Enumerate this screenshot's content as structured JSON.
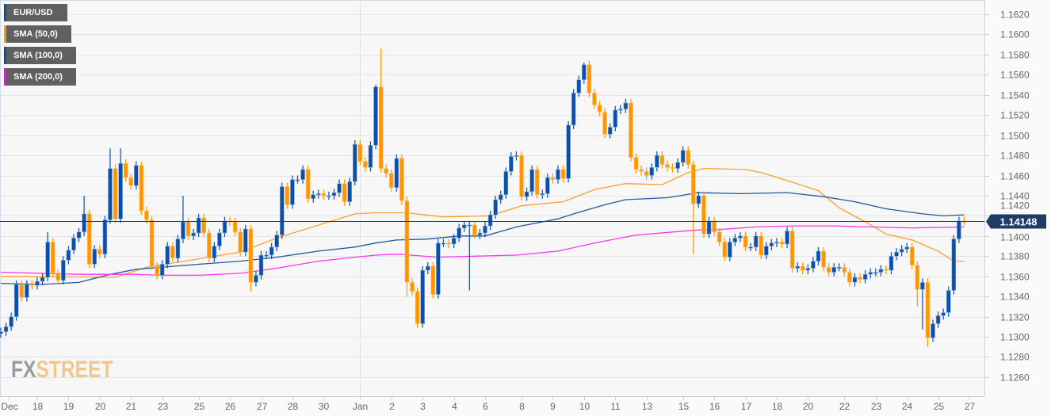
{
  "legend": [
    {
      "label": "EUR/USD",
      "color": "#0b4fa8"
    },
    {
      "label": "SMA (50,0)",
      "color": "#ff9500"
    },
    {
      "label": "SMA (100,0)",
      "color": "#0b4fa8"
    },
    {
      "label": "SMA (200,0)",
      "color": "#ff00ff"
    }
  ],
  "logo": {
    "fx": "FX",
    "street": "STREET"
  },
  "colors": {
    "up": "#0b4fa8",
    "down": "#ff9500",
    "sma50": "#ff9f2e",
    "sma100": "#2357a0",
    "sma200": "#ff33ee",
    "price_line": "#1e3d66",
    "grid": "#e4e4e4"
  },
  "chart_data": {
    "type": "candlestick",
    "title": "EUR/USD",
    "ylim": [
      1.1245,
      1.1635
    ],
    "y_ticks": [
      "1.1260",
      "1.1280",
      "1.1300",
      "1.1320",
      "1.1340",
      "1.1360",
      "1.1380",
      "1.1400",
      "1.1420",
      "1.1440",
      "1.1460",
      "1.1480",
      "1.1500",
      "1.1520",
      "1.1540",
      "1.1560",
      "1.1580",
      "1.1600",
      "1.1620"
    ],
    "x_ticks": [
      {
        "label": "Dec",
        "index": 1.5
      },
      {
        "label": "18",
        "index": 7
      },
      {
        "label": "19",
        "index": 13
      },
      {
        "label": "20",
        "index": 19
      },
      {
        "label": "21",
        "index": 25
      },
      {
        "label": "23",
        "index": 31
      },
      {
        "label": "25",
        "index": 38
      },
      {
        "label": "26",
        "index": 44
      },
      {
        "label": "27",
        "index": 50
      },
      {
        "label": "28",
        "index": 56
      },
      {
        "label": "30",
        "index": 62
      },
      {
        "label": "Jan",
        "index": 69,
        "gridline": true
      },
      {
        "label": "2",
        "index": 75
      },
      {
        "label": "3",
        "index": 81
      },
      {
        "label": "4",
        "index": 87
      },
      {
        "label": "6",
        "index": 93
      },
      {
        "label": "8",
        "index": 100
      },
      {
        "label": "9",
        "index": 106
      },
      {
        "label": "10",
        "index": 112
      },
      {
        "label": "11",
        "index": 118
      },
      {
        "label": "13",
        "index": 124
      },
      {
        "label": "15",
        "index": 131
      },
      {
        "label": "16",
        "index": 137
      },
      {
        "label": "17",
        "index": 143
      },
      {
        "label": "18",
        "index": 149
      },
      {
        "label": "20",
        "index": 155
      },
      {
        "label": "22",
        "index": 162
      },
      {
        "label": "23",
        "index": 168
      },
      {
        "label": "24",
        "index": 174
      },
      {
        "label": "25",
        "index": 180
      },
      {
        "label": "27",
        "index": 186
      }
    ],
    "first_open": 1.1303,
    "closes": [
      1.1305,
      1.131,
      1.132,
      1.1352,
      1.1339,
      1.1352,
      1.1351,
      1.1355,
      1.1359,
      1.1394,
      1.1363,
      1.1356,
      1.1376,
      1.1386,
      1.1398,
      1.1404,
      1.1422,
      1.1372,
      1.1387,
      1.1382,
      1.1416,
      1.1467,
      1.1417,
      1.1472,
      1.1458,
      1.145,
      1.147,
      1.1425,
      1.1416,
      1.137,
      1.1361,
      1.1372,
      1.139,
      1.1378,
      1.1397,
      1.1414,
      1.14,
      1.1403,
      1.1418,
      1.1403,
      1.1378,
      1.139,
      1.1403,
      1.1415,
      1.1414,
      1.1404,
      1.1384,
      1.1407,
      1.1354,
      1.1361,
      1.1381,
      1.1381,
      1.1389,
      1.1401,
      1.1449,
      1.1431,
      1.1456,
      1.1456,
      1.1466,
      1.1437,
      1.1441,
      1.1442,
      1.144,
      1.144,
      1.1443,
      1.1452,
      1.1434,
      1.1454,
      1.1491,
      1.1474,
      1.1468,
      1.149,
      1.1548,
      1.1467,
      1.1462,
      1.1448,
      1.1477,
      1.1435,
      1.1354,
      1.1345,
      1.1313,
      1.1366,
      1.137,
      1.1342,
      1.1393,
      1.1393,
      1.1392,
      1.1398,
      1.1408,
      1.1411,
      1.1411,
      1.1401,
      1.1403,
      1.141,
      1.1421,
      1.1436,
      1.1441,
      1.1464,
      1.1479,
      1.148,
      1.1439,
      1.1444,
      1.1466,
      1.1441,
      1.1442,
      1.1458,
      1.1456,
      1.1466,
      1.1457,
      1.151,
      1.1542,
      1.1555,
      1.157,
      1.1542,
      1.153,
      1.1523,
      1.1501,
      1.1508,
      1.1525,
      1.1526,
      1.1532,
      1.1478,
      1.1466,
      1.1464,
      1.146,
      1.1468,
      1.148,
      1.1471,
      1.1468,
      1.1467,
      1.1473,
      1.1485,
      1.1471,
      1.1432,
      1.144,
      1.1402,
      1.1415,
      1.1404,
      1.1394,
      1.1379,
      1.1394,
      1.1398,
      1.14,
      1.1389,
      1.1389,
      1.14,
      1.1381,
      1.139,
      1.1393,
      1.1394,
      1.1392,
      1.1405,
      1.1368,
      1.137,
      1.1366,
      1.1368,
      1.1375,
      1.1385,
      1.1369,
      1.1364,
      1.1369,
      1.1369,
      1.1364,
      1.1354,
      1.1359,
      1.1357,
      1.1362,
      1.1364,
      1.1364,
      1.1367,
      1.1366,
      1.138,
      1.1384,
      1.1387,
      1.1389,
      1.1371,
      1.1347,
      1.1354,
      1.1299,
      1.1313,
      1.1321,
      1.1324,
      1.1346,
      1.1397,
      1.1415,
      1.14148
    ],
    "wick_default": 0.0004,
    "wick_overrides": {
      "9": {
        "h": 1.1404
      },
      "16": {
        "h": 1.144
      },
      "21": {
        "h": 1.1487
      },
      "23": {
        "h": 1.1487
      },
      "35": {
        "h": 1.144
      },
      "48": {
        "l": 1.1345
      },
      "72": {
        "h": 1.155
      },
      "73": {
        "h": 1.1586
      },
      "78": {
        "l": 1.134
      },
      "90": {
        "l": 1.1346
      },
      "112": {
        "h": 1.1572
      },
      "133": {
        "l": 1.1382
      },
      "176": {
        "l": 1.133
      },
      "177": {
        "l": 1.1307
      },
      "178": {
        "l": 1.129
      }
    },
    "series": [
      {
        "name": "SMA (50,0)",
        "key": "sma50",
        "points": [
          [
            0,
            1.136
          ],
          [
            22,
            1.1359
          ],
          [
            28,
            1.1369
          ],
          [
            46,
            1.1384
          ],
          [
            53,
            1.1398
          ],
          [
            68,
            1.1422
          ],
          [
            72,
            1.1423
          ],
          [
            78,
            1.1423
          ],
          [
            85,
            1.1419
          ],
          [
            94,
            1.142
          ],
          [
            97,
            1.1425
          ],
          [
            100,
            1.143
          ],
          [
            108,
            1.1434
          ],
          [
            114,
            1.1446
          ],
          [
            120,
            1.1452
          ],
          [
            127,
            1.1451
          ],
          [
            132,
            1.1463
          ],
          [
            135,
            1.1467
          ],
          [
            143,
            1.1466
          ],
          [
            146,
            1.1463
          ],
          [
            151,
            1.1455
          ],
          [
            157,
            1.1445
          ],
          [
            161,
            1.1428
          ],
          [
            166,
            1.1414
          ],
          [
            170,
            1.1402
          ],
          [
            175,
            1.1396
          ],
          [
            180,
            1.1385
          ],
          [
            183,
            1.1375
          ],
          [
            185,
            1.1375
          ]
        ]
      },
      {
        "name": "SMA (100,0)",
        "key": "sma100",
        "points": [
          [
            0,
            1.1353
          ],
          [
            8,
            1.1352
          ],
          [
            15,
            1.1354
          ],
          [
            21,
            1.1362
          ],
          [
            26,
            1.1367
          ],
          [
            38,
            1.1372
          ],
          [
            46,
            1.1375
          ],
          [
            53,
            1.1379
          ],
          [
            61,
            1.1385
          ],
          [
            68,
            1.1389
          ],
          [
            72,
            1.1393
          ],
          [
            76,
            1.1396
          ],
          [
            82,
            1.1397
          ],
          [
            88,
            1.14
          ],
          [
            93,
            1.14
          ],
          [
            99,
            1.1409
          ],
          [
            107,
            1.1417
          ],
          [
            110,
            1.1422
          ],
          [
            116,
            1.1431
          ],
          [
            120,
            1.1436
          ],
          [
            128,
            1.1438
          ],
          [
            134,
            1.1443
          ],
          [
            142,
            1.1442
          ],
          [
            151,
            1.1443
          ],
          [
            158,
            1.1439
          ],
          [
            164,
            1.1434
          ],
          [
            170,
            1.1427
          ],
          [
            177,
            1.1422
          ],
          [
            181,
            1.142
          ],
          [
            185,
            1.1421
          ]
        ]
      },
      {
        "name": "SMA (200,0)",
        "key": "sma200",
        "points": [
          [
            0,
            1.1364
          ],
          [
            15,
            1.1362
          ],
          [
            26,
            1.1362
          ],
          [
            30,
            1.1361
          ],
          [
            38,
            1.1361
          ],
          [
            46,
            1.1363
          ],
          [
            53,
            1.1368
          ],
          [
            61,
            1.1375
          ],
          [
            68,
            1.1379
          ],
          [
            72,
            1.1381
          ],
          [
            76,
            1.1382
          ],
          [
            84,
            1.1379
          ],
          [
            91,
            1.138
          ],
          [
            99,
            1.1381
          ],
          [
            107,
            1.1385
          ],
          [
            114,
            1.1393
          ],
          [
            122,
            1.1401
          ],
          [
            129,
            1.1404
          ],
          [
            134,
            1.1406
          ],
          [
            137,
            1.1406
          ],
          [
            145,
            1.1409
          ],
          [
            152,
            1.141
          ],
          [
            160,
            1.141
          ],
          [
            167,
            1.1409
          ],
          [
            175,
            1.1408
          ],
          [
            185,
            1.1409
          ]
        ]
      }
    ],
    "last_price": 1.14148,
    "last_price_label": "1.14148",
    "grid": true
  }
}
